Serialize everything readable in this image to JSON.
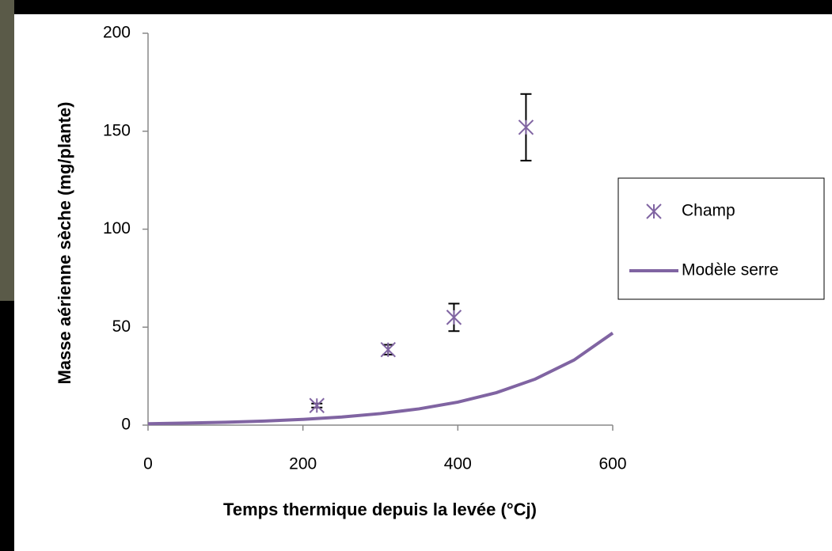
{
  "chart_data": {
    "type": "scatter",
    "xlabel": "Temps thermique depuis la levée (°Cj)",
    "ylabel": "Masse aérienne sèche (mg/plante)",
    "xlim": [
      0,
      600
    ],
    "xticks": [
      0,
      200,
      400,
      600
    ],
    "ylim": [
      0,
      200
    ],
    "yticks": [
      0,
      50,
      100,
      150,
      200
    ],
    "legend": "right",
    "series": [
      {
        "name": "Champ",
        "type": "scatter",
        "color": "#8064a2",
        "x": [
          218,
          310,
          395,
          488
        ],
        "values": [
          10,
          38.5,
          55,
          152
        ],
        "errors": [
          1,
          2.5,
          7,
          17
        ]
      },
      {
        "name": "Modèle serre",
        "type": "line",
        "color": "#8064a2",
        "x": [
          0,
          50,
          100,
          150,
          200,
          250,
          300,
          350,
          400,
          450,
          500,
          550,
          600
        ],
        "values": [
          0.73,
          1.04,
          1.47,
          2.08,
          2.94,
          4.16,
          5.88,
          8.31,
          11.75,
          16.6,
          23.5,
          33.2,
          47
        ]
      }
    ]
  }
}
